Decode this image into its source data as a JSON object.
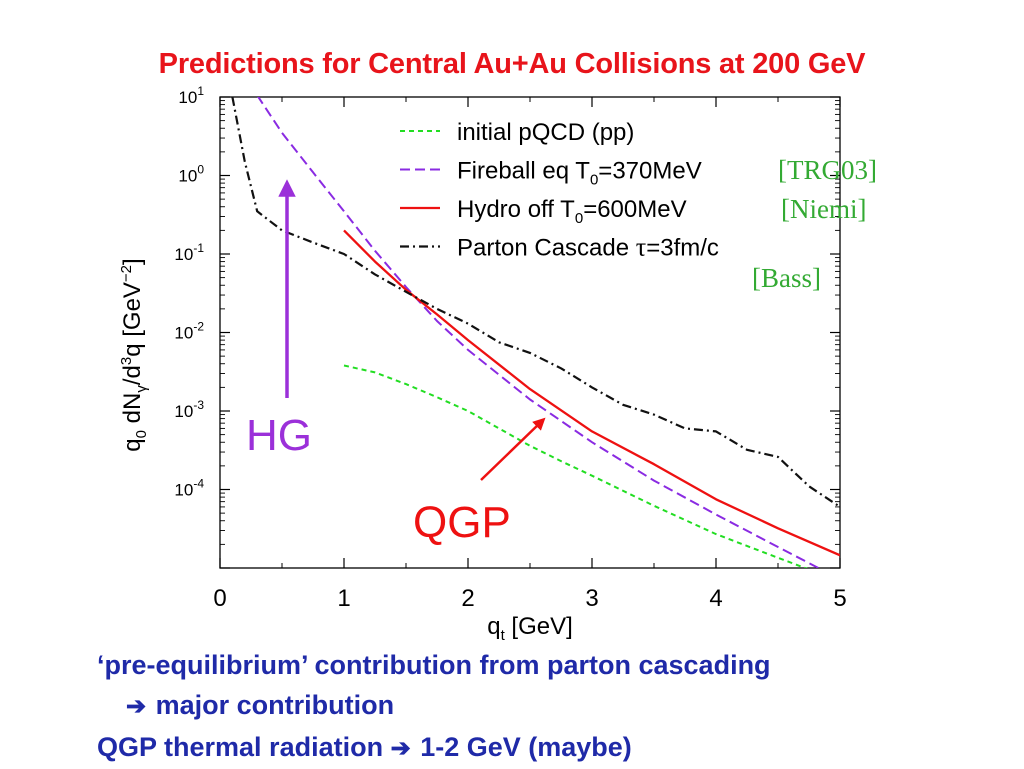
{
  "slide": {
    "title": "Predictions for Central Au+Au Collisions at 200 GeV",
    "bullets": {
      "line1": "‘pre-equilibrium’ contribution from parton cascading",
      "line2_arrow": "➔",
      "line2": "major contribution",
      "line3a": "QGP thermal radiation",
      "line3_arrow": "➔",
      "line3b": "1-2 GeV (maybe)"
    }
  },
  "colors": {
    "title": "#e8141b",
    "bullets": "#1f2aa8",
    "initial_pqcd": "#22dd22",
    "fireball": "#8a2be2",
    "hydro": "#ee1111",
    "cascade": "#111111",
    "hg_arrow": "#9b30d9",
    "qgp_arrow": "#ee1111",
    "citations": "#33aa33"
  },
  "chart_data": {
    "type": "line",
    "xlabel": "q",
    "xlabel_sub": "t",
    "xlabel_unit": "[GeV]",
    "ylabel_parts": {
      "q": "q",
      "q_sub": "0",
      "dN": " dN",
      "dN_sub": "γ",
      "slash": "/d",
      "d_sup": "3",
      "q2": "q",
      "unit_open": "  [GeV",
      "unit_sup": "−2",
      "unit_close": "]"
    },
    "xlim": [
      0,
      5
    ],
    "ylim_log10": [
      -5,
      1
    ],
    "y_scale": "log",
    "x_ticks": [
      0,
      1,
      2,
      3,
      4,
      5
    ],
    "y_ticks": [
      {
        "exp": 1,
        "base": "10",
        "sup": "1"
      },
      {
        "exp": 0,
        "base": "10",
        "sup": "0"
      },
      {
        "exp": -1,
        "base": "10",
        "sup": "-1"
      },
      {
        "exp": -2,
        "base": "10",
        "sup": "-2"
      },
      {
        "exp": -3,
        "base": "10",
        "sup": "-3"
      },
      {
        "exp": -4,
        "base": "10",
        "sup": "-4"
      }
    ],
    "grid": false,
    "legend_position": "top-right",
    "series": [
      {
        "name": "initial pQCD (pp)",
        "style": "dashed-short",
        "x": [
          1.0,
          1.25,
          1.5,
          1.75,
          2.0,
          2.25,
          2.5,
          2.75,
          3.0,
          3.5,
          4.0,
          4.5,
          5.0
        ],
        "y": [
          0.0038,
          0.0031,
          0.0022,
          0.0015,
          0.001,
          0.0006,
          0.00036,
          0.00023,
          0.00015,
          6.2e-05,
          2.7e-05,
          1.35e-05,
          6.8e-06
        ]
      },
      {
        "name": "Fireball eq T0=370MeV",
        "name_parts": [
          "Fireball eq T",
          "0",
          "=370MeV"
        ],
        "citation": "[TRG03]",
        "style": "dashed-long",
        "x": [
          0.3,
          0.5,
          0.75,
          1.0,
          1.25,
          1.5,
          1.75,
          2.0,
          2.5,
          3.0,
          3.5,
          4.0,
          4.5,
          5.0
        ],
        "y": [
          10.5,
          3.5,
          1.1,
          0.35,
          0.11,
          0.038,
          0.014,
          0.006,
          0.0014,
          0.0004,
          0.00013,
          4.8e-05,
          1.85e-05,
          7.2e-06
        ]
      },
      {
        "name": "Hydro off T0=600MeV",
        "name_parts": [
          "Hydro off T",
          "0",
          "=600MeV"
        ],
        "citation": "[Niemi]",
        "style": "solid",
        "x": [
          1.0,
          1.25,
          1.5,
          1.75,
          2.0,
          2.5,
          3.0,
          3.5,
          4.0,
          4.5,
          5.0
        ],
        "y": [
          0.2,
          0.08,
          0.035,
          0.017,
          0.008,
          0.0019,
          0.00055,
          0.00021,
          7.5e-05,
          3.2e-05,
          1.45e-05
        ]
      },
      {
        "name": "Parton Cascade τ=3fm/c",
        "name_parts": [
          "Parton Cascade ",
          "τ",
          "=3fm/c"
        ],
        "citation": "[Bass]",
        "style": "dash-dot",
        "x": [
          0.1,
          0.2,
          0.3,
          0.5,
          0.75,
          1.0,
          1.25,
          1.5,
          1.75,
          2.0,
          2.25,
          2.5,
          2.75,
          3.0,
          3.25,
          3.5,
          3.75,
          4.0,
          4.25,
          4.5,
          4.75,
          5.0
        ],
        "y": [
          10.0,
          1.5,
          0.35,
          0.2,
          0.14,
          0.1,
          0.055,
          0.033,
          0.02,
          0.013,
          0.0075,
          0.0055,
          0.0035,
          0.002,
          0.0012,
          0.0009,
          0.0006,
          0.00055,
          0.00032,
          0.00026,
          0.00011,
          6e-05
        ]
      }
    ],
    "annotations": [
      {
        "id": "hg",
        "text": "HG"
      },
      {
        "id": "qgp",
        "text": "QGP"
      }
    ]
  }
}
